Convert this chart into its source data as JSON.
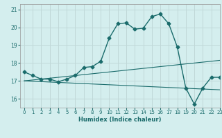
{
  "xlabel": "Humidex (Indice chaleur)",
  "background_color": "#d4eeee",
  "grid_color": "#c0d8d8",
  "line_color": "#1a6b6b",
  "xlim": [
    -0.5,
    23
  ],
  "ylim": [
    15.5,
    21.3
  ],
  "yticks": [
    16,
    17,
    18,
    19,
    20,
    21
  ],
  "xticks": [
    0,
    1,
    2,
    3,
    4,
    5,
    6,
    7,
    8,
    9,
    10,
    11,
    12,
    13,
    14,
    15,
    16,
    17,
    18,
    19,
    20,
    21,
    22,
    23
  ],
  "main_line_x": [
    0,
    1,
    2,
    3,
    4,
    5,
    6,
    7,
    8,
    9,
    10,
    11,
    12,
    13,
    14,
    15,
    16,
    17,
    18,
    19,
    20,
    21,
    22,
    23
  ],
  "main_line_y": [
    17.5,
    17.3,
    17.1,
    17.1,
    16.95,
    17.1,
    17.3,
    17.75,
    17.8,
    18.1,
    19.4,
    20.2,
    20.25,
    19.9,
    19.95,
    20.6,
    20.75,
    20.2,
    18.9,
    16.6,
    15.7,
    16.6,
    17.2,
    17.2
  ],
  "line2_x": [
    0,
    23
  ],
  "line2_y": [
    17.0,
    18.15
  ],
  "line3_x": [
    0,
    23
  ],
  "line3_y": [
    17.0,
    16.5
  ]
}
